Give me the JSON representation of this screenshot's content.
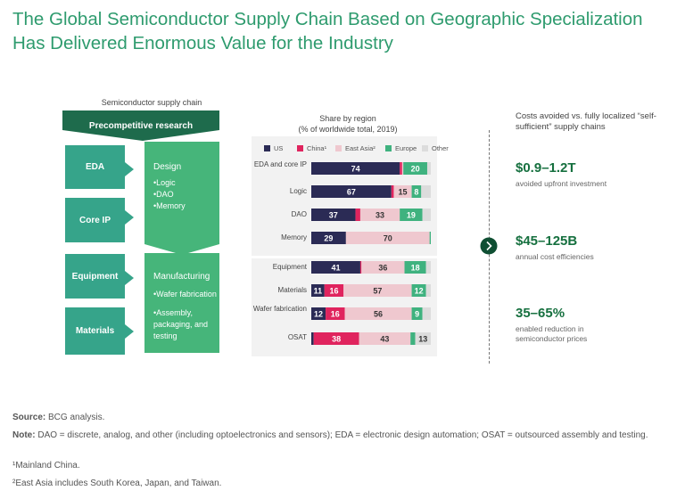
{
  "title": "The Global Semiconductor Supply Chain Based on Geographic Specialization Has Delivered Enormous Value for the Industry",
  "supply_chain": {
    "heading": "Semiconductor supply chain",
    "precompetitive": "Precompetitive research",
    "left_boxes": [
      "EDA",
      "Core IP",
      "Equipment",
      "Materials"
    ],
    "design": {
      "label": "Design",
      "items": [
        "Logic",
        "DAO",
        "Memory"
      ]
    },
    "manufacturing": {
      "label": "Manufacturing",
      "items": [
        "Wafer fabrication",
        "Assembly, packaging, and testing"
      ]
    }
  },
  "chart_data": {
    "type": "bar",
    "orientation": "horizontal",
    "stacked": true,
    "title": "Share by region",
    "subtitle": "(% of worldwide total, 2019)",
    "categories": [
      "EDA and core IP",
      "Logic",
      "DAO",
      "Memory",
      "Equipment",
      "Materials",
      "Wafer fabrication",
      "OSAT"
    ],
    "series": [
      {
        "name": "US",
        "color": "#2b2b55",
        "values": [
          74,
          67,
          37,
          29,
          41,
          11,
          12,
          2
        ]
      },
      {
        "name": "China¹",
        "color": "#e0245e",
        "values": [
          2,
          2,
          4,
          0,
          1,
          16,
          16,
          38
        ]
      },
      {
        "name": "East Asia²",
        "color": "#efc8cf",
        "values": [
          1,
          15,
          33,
          70,
          36,
          57,
          56,
          43
        ]
      },
      {
        "name": "Europe",
        "color": "#3fb27f",
        "values": [
          20,
          8,
          19,
          1,
          18,
          12,
          9,
          4
        ]
      },
      {
        "name": "Other",
        "color": "#dcdcdc",
        "values": [
          3,
          8,
          7,
          0,
          4,
          4,
          7,
          13
        ]
      }
    ],
    "data_labels": [
      [
        "74",
        "",
        "",
        "20",
        ""
      ],
      [
        "67",
        "",
        "15",
        "8",
        ""
      ],
      [
        "37",
        "",
        "33",
        "19",
        ""
      ],
      [
        "29",
        "",
        "70",
        "",
        ""
      ],
      [
        "41",
        "",
        "36",
        "18",
        ""
      ],
      [
        "11",
        "16",
        "57",
        "12",
        ""
      ],
      [
        "12",
        "16",
        "56",
        "9",
        ""
      ],
      [
        "",
        "38",
        "43",
        "",
        "13"
      ]
    ],
    "xlim": [
      0,
      100
    ],
    "legend_position": "top"
  },
  "costs": {
    "heading": "Costs avoided vs. fully localized “self-sufficient” supply chains",
    "items": [
      {
        "value": "$0.9–1.2T",
        "caption": "avoided upfront investment"
      },
      {
        "value": "$45–125B",
        "caption": "annual cost efficiencies"
      },
      {
        "value": "35–65%",
        "caption": "enabled reduction in semiconductor prices"
      }
    ]
  },
  "footnotes": {
    "source_label": "Source:",
    "source": "BCG analysis.",
    "note_label": "Note:",
    "note": "DAO = discrete, analog, and other (including optoelectronics and sensors); EDA = electronic design automation; OSAT = outsourced assembly and testing.",
    "fn1": "¹Mainland China.",
    "fn2": "²East Asia includes South Korea, Japan, and Taiwan."
  },
  "colors": {
    "title": "#2e9b6e",
    "dark_green": "#1e6b4c",
    "teal": "#36a48a",
    "green": "#46b57a",
    "number": "#16703f"
  }
}
